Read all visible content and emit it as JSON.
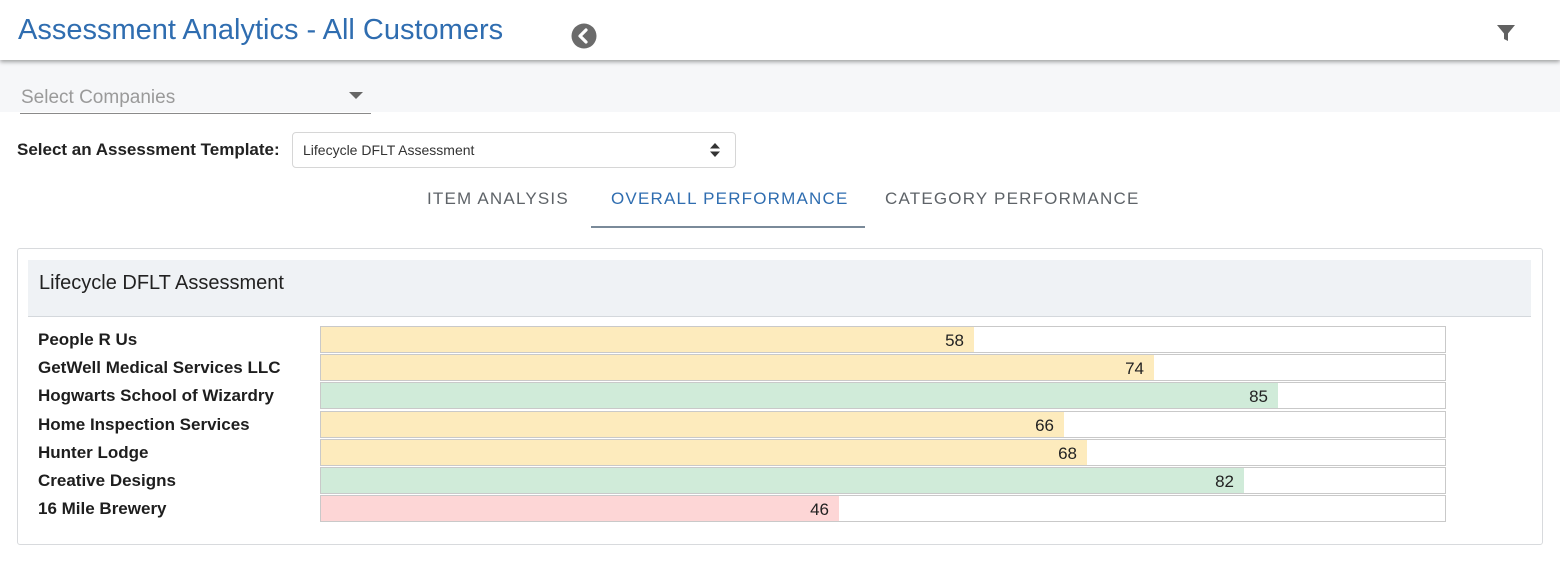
{
  "header": {
    "title": "Assessment Analytics - All Customers",
    "back_icon": "circle-chevron-left-icon",
    "filter_icon": "filter-icon"
  },
  "company_filter": {
    "placeholder": "Select Companies"
  },
  "template": {
    "label": "Select an Assessment Template:",
    "selected": "Lifecycle DFLT Assessment"
  },
  "tabs": [
    {
      "label": "ITEM ANALYSIS",
      "active": false
    },
    {
      "label": "OVERALL PERFORMANCE",
      "active": true
    },
    {
      "label": "CATEGORY PERFORMANCE",
      "active": false
    }
  ],
  "card": {
    "title": "Lifecycle DFLT Assessment"
  },
  "colors": {
    "accent": "#2f6db0",
    "medium": "#fdebbd",
    "high": "#d0ebd9",
    "low": "#fdd6d6"
  },
  "chart_data": {
    "type": "bar",
    "orientation": "horizontal",
    "categories": [
      "People R Us",
      "GetWell Medical Services LLC",
      "Hogwarts School of Wizardry",
      "Home Inspection Services",
      "Hunter Lodge",
      "Creative Designs",
      "16 Mile Brewery"
    ],
    "values": [
      58,
      74,
      85,
      66,
      68,
      82,
      46
    ],
    "xlim": [
      0,
      100
    ],
    "data_labels": true
  }
}
